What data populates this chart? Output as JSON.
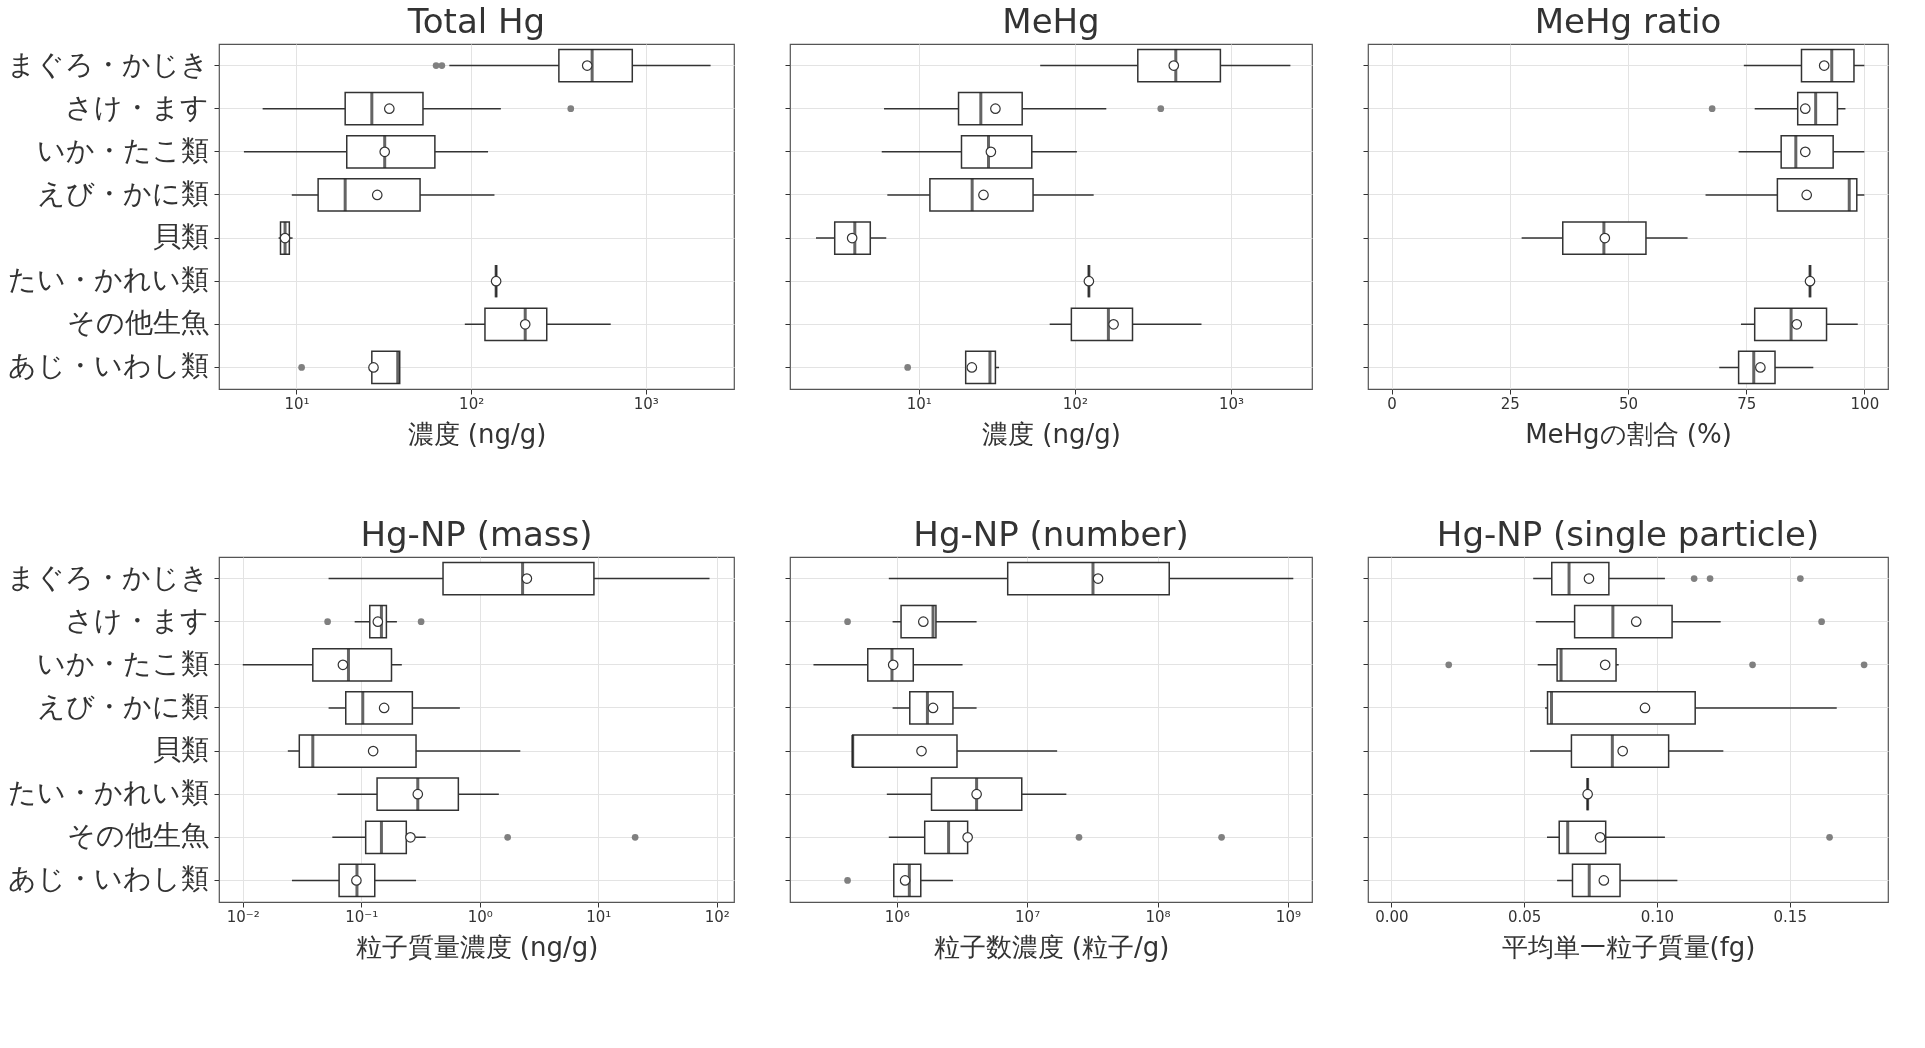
{
  "chart_data": [
    {
      "type": "box",
      "title": "Total Hg",
      "xlabel": "濃度 (ng/g)",
      "orientation": "horizontal",
      "log": "x",
      "grid": true,
      "categories": [
        "まぐろ・かじき",
        "さけ・ます",
        "いか・たこ類",
        "えび・かに類",
        "貝類",
        "たい・かれい類",
        "その他生魚",
        "あじ・いわし類"
      ],
      "xlim": [
        3.6,
        3200
      ],
      "xticks": [
        {
          "value": 10,
          "label": "10¹"
        },
        {
          "value": 100,
          "label": "10²"
        },
        {
          "value": 1000,
          "label": "10³"
        }
      ],
      "boxes": [
        {
          "low": 75,
          "q1": 318,
          "median": 493,
          "q3": 837,
          "high": 2350,
          "mean": 462,
          "outliers": [
            63,
            68
          ]
        },
        {
          "low": 6.4,
          "q1": 19,
          "median": 27,
          "q3": 53,
          "high": 148,
          "mean": 34,
          "outliers": [
            372
          ]
        },
        {
          "low": 5.0,
          "q1": 19.4,
          "median": 32,
          "q3": 62,
          "high": 125,
          "mean": 32
        },
        {
          "low": 9.4,
          "q1": 13.3,
          "median": 19,
          "q3": 51,
          "high": 136,
          "mean": 29
        },
        {
          "low": 7.9,
          "q1": 8.1,
          "median": 8.6,
          "q3": 9.1,
          "high": 9.5,
          "mean": 8.6
        },
        {
          "low": 139,
          "q1": 139,
          "median": 139,
          "q3": 139,
          "high": 139,
          "mean": 139
        },
        {
          "low": 92,
          "q1": 120,
          "median": 204,
          "q3": 271,
          "high": 630,
          "mean": 204
        },
        {
          "low": 27,
          "q1": 27,
          "median": 38,
          "q3": 39,
          "high": 39,
          "mean": 27.6,
          "outliers": [
            10.7
          ]
        }
      ]
    },
    {
      "type": "box",
      "title": "MeHg",
      "xlabel": "濃度 (ng/g)",
      "orientation": "horizontal",
      "log": "x",
      "grid": true,
      "tick_labels": "x",
      "xlim": [
        1.5,
        3300
      ],
      "xticks": [
        {
          "value": 10,
          "label": "10¹"
        },
        {
          "value": 100,
          "label": "10²"
        },
        {
          "value": 1000,
          "label": "10³"
        }
      ],
      "boxes": [
        {
          "low": 60,
          "q1": 253,
          "median": 443,
          "q3": 855,
          "high": 2400,
          "mean": 430
        },
        {
          "low": 6.0,
          "q1": 18,
          "median": 25,
          "q3": 46,
          "high": 159,
          "mean": 31,
          "outliers": [
            355
          ]
        },
        {
          "low": 5.8,
          "q1": 18.8,
          "median": 28,
          "q3": 53,
          "high": 103,
          "mean": 29
        },
        {
          "low": 6.3,
          "q1": 11.8,
          "median": 22,
          "q3": 54,
          "high": 132,
          "mean": 26
        },
        {
          "low": 2.2,
          "q1": 2.9,
          "median": 3.9,
          "q3": 4.9,
          "high": 6.2,
          "mean": 3.75
        },
        {
          "low": 123,
          "q1": 123,
          "median": 123,
          "q3": 123,
          "high": 123,
          "mean": 123
        },
        {
          "low": 69,
          "q1": 95,
          "median": 164,
          "q3": 234,
          "high": 647,
          "mean": 177
        },
        {
          "low": 20,
          "q1": 20,
          "median": 28.6,
          "q3": 31,
          "high": 32.7,
          "mean": 21.9,
          "outliers": [
            8.5
          ]
        }
      ]
    },
    {
      "type": "box",
      "title": "MeHg ratio",
      "xlabel": "MeHgの割合 (%)",
      "orientation": "horizontal",
      "grid": true,
      "tick_labels": "x",
      "xlim": [
        -5,
        105
      ],
      "xticks": [
        0,
        25,
        50,
        75,
        100
      ],
      "boxes": [
        {
          "low": 74.5,
          "q1": 86.7,
          "median": 93.1,
          "q3": 97.8,
          "high": 100,
          "mean": 91.5
        },
        {
          "low": 76.8,
          "q1": 85.9,
          "median": 89.7,
          "q3": 94.3,
          "high": 96,
          "mean": 87.5,
          "outliers": [
            67.8
          ]
        },
        {
          "low": 73.4,
          "q1": 82.4,
          "median": 85.5,
          "q3": 93.4,
          "high": 100,
          "mean": 87.5
        },
        {
          "low": 66.4,
          "q1": 81.6,
          "median": 96.8,
          "q3": 98.4,
          "high": 100,
          "mean": 87.8
        },
        {
          "low": 27.5,
          "q1": 36.2,
          "median": 44.9,
          "q3": 53.8,
          "high": 62.6,
          "mean": 45.1
        },
        {
          "low": 88.5,
          "q1": 88.5,
          "median": 88.5,
          "q3": 88.5,
          "high": 88.5,
          "mean": 88.5
        },
        {
          "low": 73.9,
          "q1": 76.8,
          "median": 84.5,
          "q3": 92.0,
          "high": 98.6,
          "mean": 85.7
        },
        {
          "low": 69.3,
          "q1": 73.4,
          "median": 76.6,
          "q3": 81.1,
          "high": 89.2,
          "mean": 78.0
        }
      ]
    },
    {
      "type": "box",
      "title": "Hg-NP (mass)",
      "xlabel": "粒子質量濃度 (ng/g)",
      "orientation": "horizontal",
      "log": "x",
      "grid": true,
      "categories": [
        "まぐろ・かじき",
        "さけ・ます",
        "いか・たこ類",
        "えび・かに類",
        "貝類",
        "たい・かれい類",
        "その他生魚",
        "あじ・いわし類"
      ],
      "xlim": [
        0.0063,
        140
      ],
      "xticks": [
        {
          "value": 0.01,
          "label": "10⁻²"
        },
        {
          "value": 0.1,
          "label": "10⁻¹"
        },
        {
          "value": 1,
          "label": "10⁰"
        },
        {
          "value": 10,
          "label": "10¹"
        },
        {
          "value": 100,
          "label": "10²"
        }
      ],
      "boxes": [
        {
          "low": 0.053,
          "q1": 0.49,
          "median": 2.3,
          "q3": 9.2,
          "high": 87,
          "mean": 2.5
        },
        {
          "low": 0.088,
          "q1": 0.118,
          "median": 0.148,
          "q3": 0.163,
          "high": 0.2,
          "mean": 0.138,
          "outliers": [
            0.052,
            0.32
          ]
        },
        {
          "low": 0.01,
          "q1": 0.039,
          "median": 0.078,
          "q3": 0.18,
          "high": 0.22,
          "mean": 0.07
        },
        {
          "low": 0.053,
          "q1": 0.074,
          "median": 0.103,
          "q3": 0.27,
          "high": 0.68,
          "mean": 0.156
        },
        {
          "low": 0.024,
          "q1": 0.03,
          "median": 0.039,
          "q3": 0.29,
          "high": 2.2,
          "mean": 0.126
        },
        {
          "low": 0.063,
          "q1": 0.136,
          "median": 0.3,
          "q3": 0.66,
          "high": 1.45,
          "mean": 0.3
        },
        {
          "low": 0.057,
          "q1": 0.109,
          "median": 0.148,
          "q3": 0.24,
          "high": 0.35,
          "mean": 0.26,
          "outliers": [
            1.72,
            20.5
          ]
        },
        {
          "low": 0.026,
          "q1": 0.065,
          "median": 0.092,
          "q3": 0.13,
          "high": 0.29,
          "mean": 0.091
        }
      ]
    },
    {
      "type": "box",
      "title": "Hg-NP (number)",
      "xlabel": "粒子数濃度 (粒子/g)",
      "orientation": "horizontal",
      "log": "x",
      "grid": true,
      "tick_labels": "x",
      "xlim": [
        152000,
        1530000000
      ],
      "xticks": [
        {
          "value": 1000000,
          "label": "10⁶"
        },
        {
          "value": 10000000,
          "label": "10⁷"
        },
        {
          "value": 100000000,
          "label": "10⁸"
        },
        {
          "value": 1000000000,
          "label": "10⁹"
        }
      ],
      "boxes": [
        {
          "low": 870000,
          "q1": 7100000,
          "median": 32000000,
          "q3": 123000000,
          "high": 1100000000,
          "mean": 35000000
        },
        {
          "low": 930000,
          "q1": 1080000,
          "median": 1900000,
          "q3": 2000000,
          "high": 4100000,
          "mean": 1600000,
          "outliers": [
            420000
          ]
        },
        {
          "low": 230000,
          "q1": 600000,
          "median": 920000,
          "q3": 1340000,
          "high": 3200000,
          "mean": 940000
        },
        {
          "low": 930000,
          "q1": 1260000,
          "median": 1720000,
          "q3": 2700000,
          "high": 4100000,
          "mean": 1900000
        },
        {
          "low": 460000,
          "q1": 460000,
          "median": 460000,
          "q3": 2900000,
          "high": 17000000,
          "mean": 1550000
        },
        {
          "low": 840000,
          "q1": 1850000,
          "median": 4100000,
          "q3": 9100000,
          "high": 20000000,
          "mean": 4100000
        },
        {
          "low": 870000,
          "q1": 1640000,
          "median": 2500000,
          "q3": 3500000,
          "high": 3500000,
          "mean": 3500000,
          "outliers": [
            25000000,
            310000000
          ]
        },
        {
          "low": 950000,
          "q1": 950000,
          "median": 1250000,
          "q3": 1530000,
          "high": 2700000,
          "mean": 1160000,
          "outliers": [
            420000
          ]
        }
      ]
    },
    {
      "type": "box",
      "title": "Hg-NP (single particle)",
      "xlabel": "平均単一粒子質量(fg)",
      "orientation": "horizontal",
      "grid": true,
      "tick_labels": "x",
      "xlim": [
        -0.0088,
        0.187
      ],
      "xticks": [
        {
          "value": 0,
          "label": "0.00"
        },
        {
          "value": 0.05,
          "label": "0.05"
        },
        {
          "value": 0.1,
          "label": "0.10"
        },
        {
          "value": 0.15,
          "label": "0.15"
        }
      ],
      "boxes": [
        {
          "low": 0.0534,
          "q1": 0.0604,
          "median": 0.0669,
          "q3": 0.0819,
          "high": 0.103,
          "mean": 0.0744,
          "outliers": [
            0.114,
            0.12,
            0.154
          ]
        },
        {
          "low": 0.0544,
          "q1": 0.069,
          "median": 0.0834,
          "q3": 0.1057,
          "high": 0.124,
          "mean": 0.0922,
          "outliers": [
            0.162
          ]
        },
        {
          "low": 0.0551,
          "q1": 0.0624,
          "median": 0.0639,
          "q3": 0.0846,
          "high": 0.0856,
          "mean": 0.0805,
          "outliers": [
            0.0216,
            0.136,
            0.178
          ]
        },
        {
          "low": 0.0579,
          "q1": 0.0588,
          "median": 0.0603,
          "q3": 0.1144,
          "high": 0.1677,
          "mean": 0.0955
        },
        {
          "low": 0.0522,
          "q1": 0.0678,
          "median": 0.0832,
          "q3": 0.1044,
          "high": 0.125,
          "mean": 0.0871
        },
        {
          "low": 0.0739,
          "q1": 0.0739,
          "median": 0.0739,
          "q3": 0.0739,
          "high": 0.0739,
          "mean": 0.0739
        },
        {
          "low": 0.0586,
          "q1": 0.0632,
          "median": 0.0664,
          "q3": 0.0807,
          "high": 0.103,
          "mean": 0.0786,
          "outliers": [
            0.165
          ]
        },
        {
          "low": 0.0624,
          "q1": 0.0682,
          "median": 0.0745,
          "q3": 0.0861,
          "high": 0.1077,
          "mean": 0.08
        }
      ]
    }
  ]
}
